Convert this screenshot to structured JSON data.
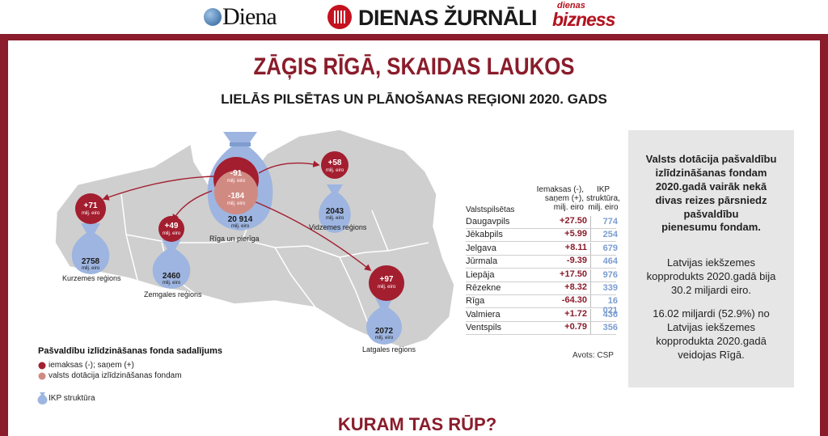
{
  "logos": {
    "diena": "Diena",
    "dienas_zurnali": "DIENAS ŽURNĀLI",
    "dienas_bizness_top": "dienas",
    "dienas_bizness_bottom": "bizness"
  },
  "title": "ZĀĢIS RĪGĀ, SKAIDAS LAUKOS",
  "subtitle": "LIELĀS PILSĒTAS UN PLĀNOŠANAS REĢIONI 2020. GADS",
  "colors": {
    "maroon": "#8a1c2b",
    "payment_circle": "#a31e2f",
    "subsidy_circle": "#d18a82",
    "gdp_bag": "#9db5e0",
    "map_gray": "#cfcfcf"
  },
  "map": {
    "unit": "milj. eiro",
    "regions": [
      {
        "name": "Rīga un pierīga",
        "gdp": "20 914",
        "payments": [
          "-91",
          "-184"
        ]
      },
      {
        "name": "Vidzemes reģions",
        "gdp": "2043",
        "payments": [
          "+58"
        ]
      },
      {
        "name": "Kurzemes reģions",
        "gdp": "2758",
        "payments": [
          "+71"
        ]
      },
      {
        "name": "Zemgales reģions",
        "gdp": "2460",
        "payments": [
          "+49"
        ]
      },
      {
        "name": "Latgales reģions",
        "gdp": "2072",
        "payments": [
          "+97"
        ]
      }
    ]
  },
  "legend": {
    "title": "Pašvaldību izlīdzināšanas fonda sadalījums",
    "items": [
      {
        "label": "iemaksas (-); saņem (+)",
        "icon": "circle-dark-red"
      },
      {
        "label": "valsts dotācija izlīdzināšanas fondam",
        "icon": "circle-pink"
      },
      {
        "label": "IKP struktūra",
        "icon": "money-bag-blue"
      }
    ]
  },
  "table": {
    "col_city": "Valstspilsētas",
    "col_payment": [
      "Iemaksas (-),",
      "saņem (+),",
      "milj. eiro"
    ],
    "col_gdp": [
      "IKP",
      "struktūra,",
      "milj. eiro"
    ],
    "rows": [
      {
        "city": "Daugavpils",
        "value": "+27.50",
        "gdp": "774"
      },
      {
        "city": "Jēkabpils",
        "value": "+5.99",
        "gdp": "254"
      },
      {
        "city": "Jelgava",
        "value": "+8.11",
        "gdp": "679"
      },
      {
        "city": "Jūrmala",
        "value": "-9.39",
        "gdp": "464"
      },
      {
        "city": "Liepāja",
        "value": "+17.50",
        "gdp": "976"
      },
      {
        "city": "Rēzekne",
        "value": "+8.32",
        "gdp": "339"
      },
      {
        "city": "Rīga",
        "value": "-64.30",
        "gdp": "16 021"
      },
      {
        "city": "Valmiera",
        "value": "+1.72",
        "gdp": "436"
      },
      {
        "city": "Ventspils",
        "value": "+0.79",
        "gdp": "356"
      }
    ],
    "source": "Avots: CSP"
  },
  "info": {
    "bold_lines": [
      "Valsts dotācija pašvaldību",
      "izlīdzināšanas fondam",
      "2020.gadā vairāk nekā",
      "divas reizes pārsniedz",
      "pašvaldību",
      "pienesumu fondam."
    ],
    "para2_lines": [
      "Latvijas iekšzemes",
      "kopprodukts 2020.gadā bija",
      "30.2 miljardi eiro."
    ],
    "para3_lines": [
      "16.02 miljardi (52.9%) no",
      "Latvijas iekšzemes",
      "kopprodukta 2020.gadā",
      "veidojas Rīgā."
    ]
  },
  "bottom_banner": "KURAM TAS RŪP?"
}
